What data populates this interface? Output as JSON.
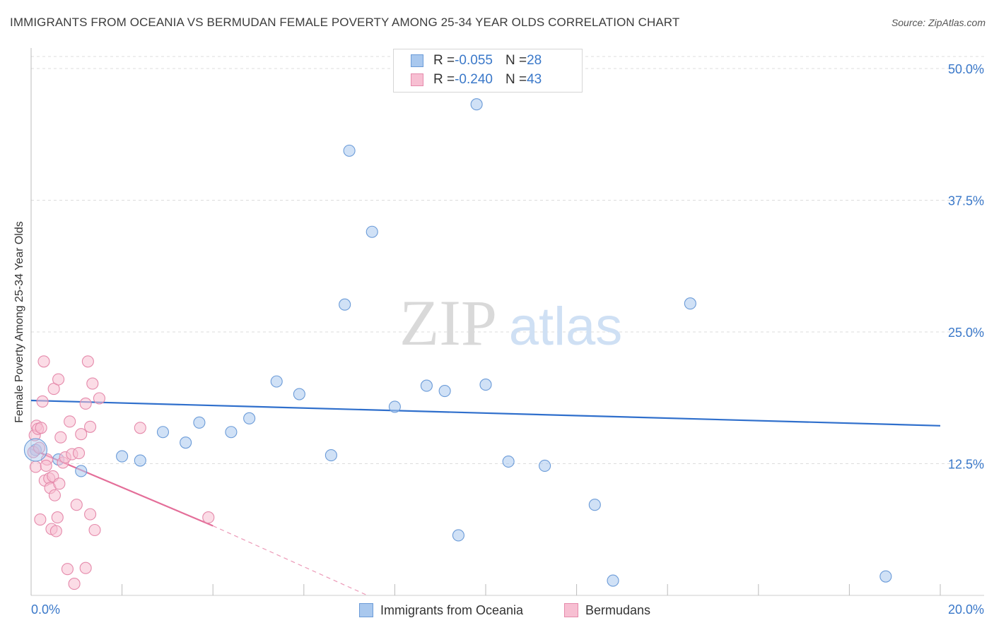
{
  "header": {
    "title": "IMMIGRANTS FROM OCEANIA VS BERMUDAN FEMALE POVERTY AMONG 25-34 YEAR OLDS CORRELATION CHART",
    "source": "Source: ZipAtlas.com"
  },
  "watermark": {
    "zip": "ZIP",
    "atlas": "atlas"
  },
  "legend_top": {
    "rows": [
      {
        "r_label": "R = ",
        "r_value": "-0.055",
        "n_label": "N = ",
        "n_value": "28",
        "color": "#a9c8ee",
        "stroke": "#6b9bd8"
      },
      {
        "r_label": "R = ",
        "r_value": "-0.240",
        "n_label": "N = ",
        "n_value": "43",
        "color": "#f7bfd2",
        "stroke": "#e58aab"
      }
    ]
  },
  "legend_bottom": {
    "items": [
      {
        "label": "Immigrants from Oceania",
        "color": "#a9c8ee",
        "stroke": "#6b9bd8"
      },
      {
        "label": "Bermudans",
        "color": "#f7bfd2",
        "stroke": "#e58aab"
      }
    ]
  },
  "chart_data": {
    "type": "scatter",
    "title": "IMMIGRANTS FROM OCEANIA VS BERMUDAN FEMALE POVERTY AMONG 25-34 YEAR OLDS CORRELATION CHART",
    "xlabel": "",
    "ylabel": "Female Poverty Among 25-34 Year Olds",
    "xlim": [
      0,
      20
    ],
    "ylim": [
      0,
      50
    ],
    "x_tick_labels": [
      "0.0%",
      "20.0%"
    ],
    "y_ticks": [
      12.5,
      25.0,
      37.5,
      50.0
    ],
    "y_tick_labels": [
      "12.5%",
      "25.0%",
      "37.5%",
      "50.0%"
    ],
    "grid": true,
    "series": [
      {
        "name": "Immigrants from Oceania",
        "color": "#a9c8ee",
        "stroke": "#6b9bd8",
        "line_color": "#2f6fcc",
        "r": -0.055,
        "n": 28,
        "trend": {
          "x": [
            0,
            20
          ],
          "y": [
            18.5,
            16.1
          ]
        },
        "x": [
          0.1,
          0.6,
          1.1,
          2.0,
          2.4,
          2.9,
          3.4,
          3.7,
          4.4,
          4.8,
          5.4,
          5.9,
          6.6,
          6.9,
          7.5,
          7.0,
          8.0,
          8.7,
          9.1,
          9.4,
          10.0,
          9.8,
          10.5,
          11.3,
          12.4,
          12.8,
          14.5,
          18.8
        ],
        "y": [
          13.8,
          12.9,
          11.8,
          13.2,
          12.8,
          15.5,
          14.5,
          16.4,
          15.5,
          16.8,
          20.3,
          19.1,
          13.3,
          27.6,
          34.5,
          42.2,
          17.9,
          19.9,
          19.4,
          5.7,
          20.0,
          46.6,
          12.7,
          12.3,
          8.6,
          1.4,
          27.7,
          1.8
        ]
      },
      {
        "name": "Bermudans",
        "color": "#f7bfd2",
        "stroke": "#e58aab",
        "line_color": "#e46e99",
        "r": -0.24,
        "n": 43,
        "trend": {
          "x": [
            0,
            4.0
          ],
          "y": [
            13.9,
            6.6
          ]
        },
        "trend_dashed": {
          "x": [
            4.0,
            7.4
          ],
          "y": [
            6.6,
            0.0
          ]
        },
        "x": [
          0.05,
          0.08,
          0.1,
          0.12,
          0.15,
          0.2,
          0.25,
          0.3,
          0.35,
          0.4,
          0.45,
          0.5,
          0.55,
          0.6,
          0.65,
          0.7,
          0.75,
          0.8,
          0.85,
          0.9,
          0.95,
          1.0,
          1.1,
          1.2,
          1.3,
          1.3,
          1.4,
          1.5,
          1.2,
          1.25,
          1.35,
          0.22,
          0.28,
          0.33,
          0.42,
          0.48,
          0.52,
          0.58,
          2.4,
          3.9,
          0.18,
          0.62,
          1.05
        ],
        "y": [
          13.6,
          15.2,
          12.2,
          16.1,
          15.8,
          7.2,
          18.4,
          10.9,
          12.9,
          11.1,
          6.3,
          19.6,
          6.1,
          20.5,
          15.0,
          12.6,
          13.1,
          2.5,
          16.5,
          13.4,
          1.1,
          8.6,
          15.3,
          18.2,
          7.7,
          16.0,
          6.2,
          18.7,
          2.6,
          22.2,
          20.1,
          15.9,
          22.2,
          12.3,
          10.2,
          11.3,
          9.5,
          7.4,
          15.9,
          7.4,
          14.0,
          10.6,
          13.5
        ]
      }
    ]
  }
}
